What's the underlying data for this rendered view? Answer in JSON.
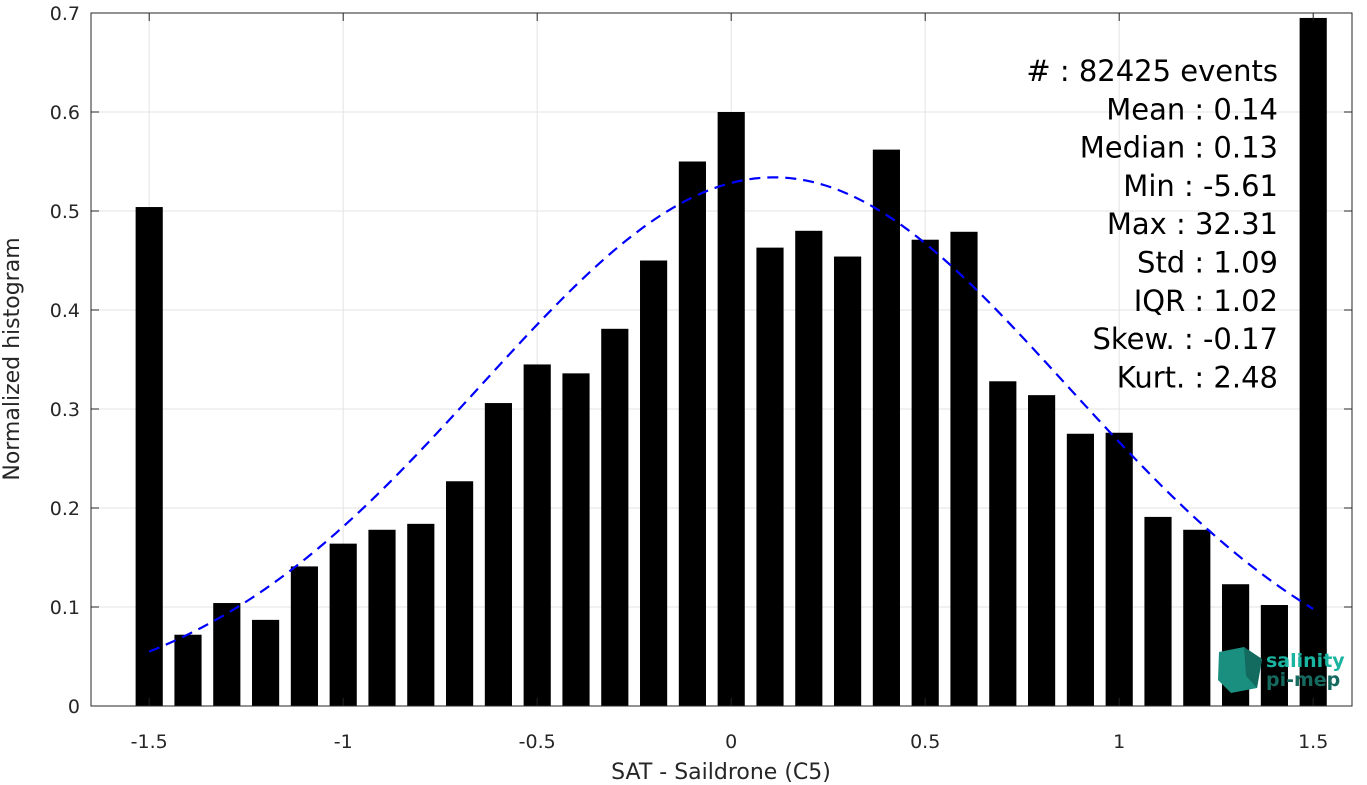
{
  "chart_data": {
    "type": "bar",
    "xlabel": "SAT - Saildrone (C5)",
    "ylabel": "Normalized histogram",
    "xlim": [
      -1.65,
      1.6
    ],
    "ylim": [
      0,
      0.7
    ],
    "xticks": [
      -1.5,
      -1,
      -0.5,
      0,
      0.5,
      1,
      1.5
    ],
    "xtick_labels": [
      "-1.5",
      "-1",
      "-0.5",
      "0",
      "0.5",
      "1",
      "1.5"
    ],
    "yticks": [
      0,
      0.1,
      0.2,
      0.3,
      0.4,
      0.5,
      0.6,
      0.7
    ],
    "ytick_labels": [
      "0",
      "0.1",
      "0.2",
      "0.3",
      "0.4",
      "0.5",
      "0.6",
      "0.7"
    ],
    "grid": true,
    "bar_color": "#000000",
    "bar_width": 0.07,
    "x": [
      -1.5,
      -1.4,
      -1.3,
      -1.2,
      -1.1,
      -1.0,
      -0.9,
      -0.8,
      -0.7,
      -0.6,
      -0.5,
      -0.4,
      -0.3,
      -0.2,
      -0.1,
      0.0,
      0.1,
      0.2,
      0.3,
      0.4,
      0.5,
      0.6,
      0.7,
      0.8,
      0.9,
      1.0,
      1.1,
      1.2,
      1.3,
      1.4,
      1.5
    ],
    "values": [
      0.504,
      0.072,
      0.104,
      0.087,
      0.141,
      0.164,
      0.178,
      0.184,
      0.227,
      0.306,
      0.345,
      0.336,
      0.381,
      0.45,
      0.55,
      0.6,
      0.463,
      0.48,
      0.454,
      0.562,
      0.471,
      0.479,
      0.328,
      0.314,
      0.275,
      0.276,
      0.191,
      0.178,
      0.123,
      0.102,
      0.695
    ],
    "fit_curve": {
      "type": "gaussian",
      "color": "#0000ff",
      "style": "dashed",
      "mean": 0.11,
      "peak": 0.534,
      "sigma": 0.755,
      "x_range": [
        -1.5,
        1.5
      ]
    },
    "stats": [
      "#  : 82425 events",
      "Mean : 0.14",
      "Median : 0.13",
      "Min : -5.61",
      "Max : 32.31",
      "Std : 1.09",
      "IQR : 1.02",
      "Skew. : -0.17",
      "Kurt. : 2.48"
    ]
  },
  "logo": {
    "line1": "salinity",
    "line2": "pi-mep",
    "colors": [
      "#19b3a0",
      "#15695e"
    ]
  }
}
